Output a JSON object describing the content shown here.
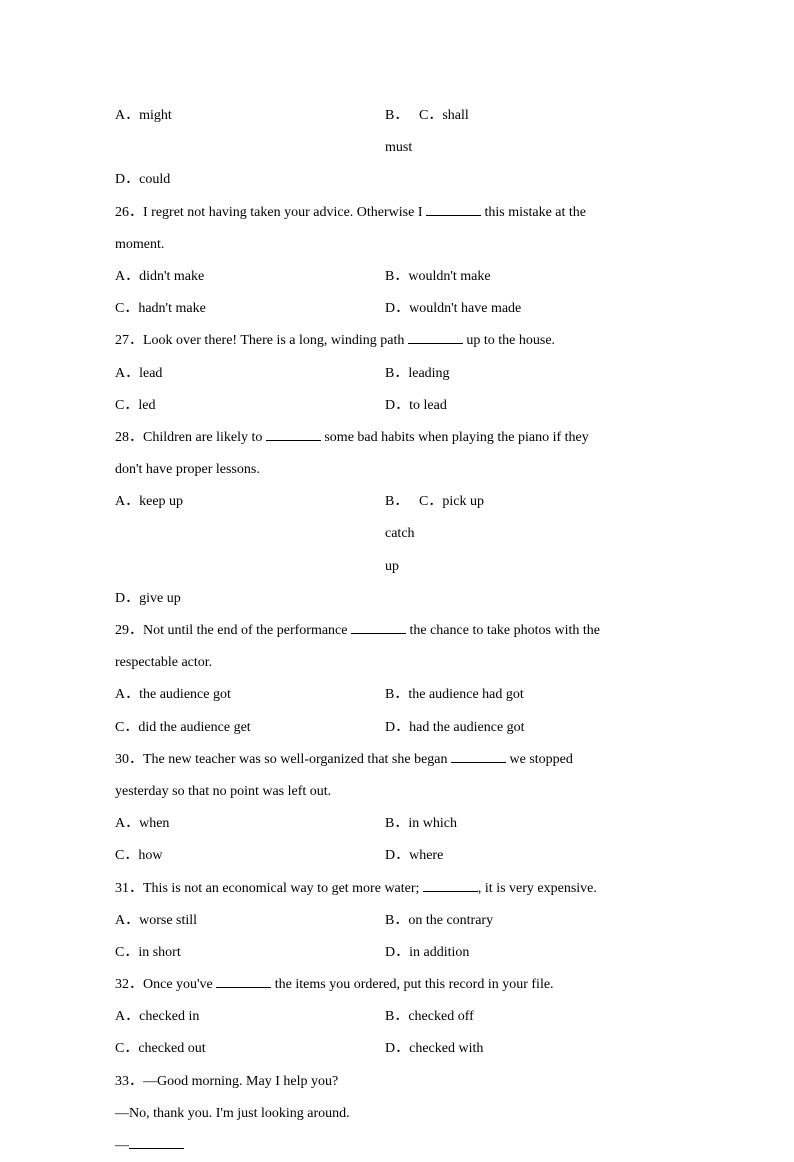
{
  "q25_choices": {
    "a": "A．might",
    "b": "B．must",
    "c": "C．shall",
    "d": "D．could"
  },
  "q26": {
    "text_pre": "26．I regret not having taken your advice. Otherwise I ",
    "text_post": " this mistake at the",
    "text_line2": "moment.",
    "a": "A．didn't make",
    "b": "B．wouldn't make",
    "c": "C．hadn't make",
    "d": "D．wouldn't have made"
  },
  "q27": {
    "text_pre": "27．Look over there! There is a long, winding path ",
    "text_post": " up to the house.",
    "a": "A．lead",
    "b": "B．leading",
    "c": "C．led",
    "d": "D．to lead"
  },
  "q28": {
    "text_pre": "28．Children are likely to ",
    "text_post": " some bad habits when playing the piano if they",
    "text_line2": "don't have proper lessons.",
    "a": "A．keep up",
    "b": "B．catch up",
    "c": "C．pick up",
    "d": "D．give up"
  },
  "q29": {
    "text_pre": "29．Not until the end of the performance ",
    "text_post": " the chance to take photos with the",
    "text_line2": "respectable actor.",
    "a": "A．the audience got",
    "b": "B．the audience had got",
    "c": "C．did the audience get",
    "d": "D．had the audience got"
  },
  "q30": {
    "text_pre": "30．The new teacher was so well-organized that she began ",
    "text_post": " we stopped",
    "text_line2": "yesterday so that no point was left out.",
    "a": "A．when",
    "b": "B．in which",
    "c": "C．how",
    "d": "D．where"
  },
  "q31": {
    "text_pre": "31．This is not an economical way to get more water; ",
    "text_post": ", it is very expensive.",
    "a": "A．worse still",
    "b": "B．on the contrary",
    "c": "C．in short",
    "d": "D．in addition"
  },
  "q32": {
    "text_pre": "32．Once you've ",
    "text_post": " the items you ordered, put this record in your file.",
    "a": "A．checked in",
    "b": "B．checked off",
    "c": "C．checked out",
    "d": "D．checked with"
  },
  "q33": {
    "line1": "33．—Good morning. May I help you?",
    "line2": "—No, thank you. I'm just looking around.",
    "line3_pre": "—"
  }
}
